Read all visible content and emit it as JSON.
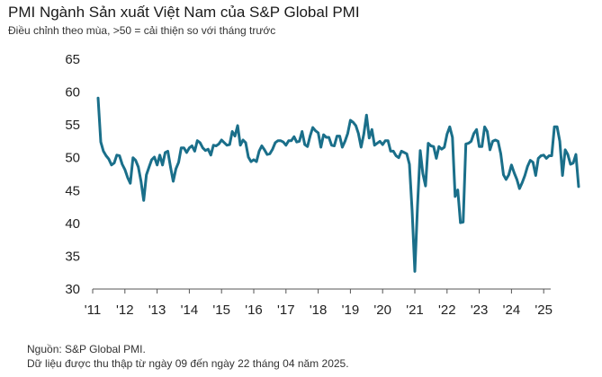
{
  "title": "PMI Ngành Sản xuất Việt Nam của S&P Global PMI",
  "subtitle": "Điều chỉnh theo mùa, >50 = cải thiện so với tháng trước",
  "footer": {
    "source": "Nguồn: S&P Global PMI.",
    "note": "Dữ liệu được thu thập từ ngày 09 đến ngày 22 tháng 04 năm 2025."
  },
  "chart_data": {
    "type": "line",
    "title": "PMI Ngành Sản xuất Việt Nam của S&P Global PMI",
    "subtitle": "Điều chỉnh theo mùa, >50 = cải thiện so với tháng trước",
    "xlabel": "",
    "ylabel": "",
    "ylim": [
      30,
      65
    ],
    "yticks": [
      30,
      35,
      40,
      45,
      50,
      55,
      60,
      65
    ],
    "xticks": [
      "'11",
      "'12",
      "'13",
      "'14",
      "'15",
      "'16",
      "'17",
      "'18",
      "'19",
      "'20",
      "'21",
      "'22",
      "'23",
      "'24",
      "'25"
    ],
    "x_start": "2011-03",
    "frequency": "monthly",
    "grid": false,
    "legend": "none",
    "line_color": "#1a6f8a",
    "series": [
      {
        "values": [
          59.1,
          52.4,
          51.0,
          50.3,
          49.8,
          48.9,
          49.2,
          50.4,
          50.3,
          49.0,
          48.2,
          47.0,
          46.1,
          50.0,
          49.6,
          48.6,
          46.4,
          43.5,
          47.4,
          48.6,
          49.7,
          50.1,
          48.9,
          50.4,
          48.9,
          50.8,
          51.0,
          48.6,
          46.4,
          48.3,
          49.3,
          51.5,
          51.5,
          50.8,
          51.5,
          51.8,
          51.0,
          52.6,
          52.3,
          51.5,
          51.1,
          51.3,
          50.4,
          51.9,
          51.8,
          52.1,
          52.7,
          52.3,
          51.9,
          52.0,
          54.0,
          53.3,
          54.9,
          51.9,
          52.7,
          52.3,
          50.1,
          49.4,
          49.7,
          49.4,
          51.0,
          51.8,
          51.2,
          50.5,
          50.6,
          51.3,
          52.3,
          52.6,
          52.6,
          52.4,
          51.9,
          52.6,
          52.6,
          53.2,
          52.4,
          52.5,
          54.0,
          52.0,
          51.7,
          53.3,
          54.6,
          54.1,
          53.8,
          51.6,
          53.5,
          53.1,
          53.1,
          51.9,
          51.8,
          53.3,
          53.3,
          51.6,
          52.5,
          53.7,
          55.7,
          55.4,
          54.9,
          53.7,
          51.6,
          53.6,
          56.5,
          53.0,
          54.3,
          51.9,
          52.2,
          52.5,
          52.0,
          52.6,
          52.6,
          51.0,
          51.0,
          50.3,
          50.0,
          51.0,
          50.8,
          50.6,
          49.0,
          41.9,
          32.7,
          42.7,
          51.1,
          47.6,
          45.7,
          52.2,
          51.8,
          51.7,
          49.9,
          51.7,
          51.3,
          51.6,
          53.6,
          54.7,
          53.1,
          44.1,
          45.1,
          40.1,
          40.2,
          52.1,
          52.2,
          52.5,
          53.7,
          54.3,
          51.7,
          51.7,
          54.7,
          54.0,
          51.2,
          52.5,
          52.7,
          52.5,
          50.6,
          47.4,
          46.7,
          47.4,
          48.9,
          47.7,
          46.7,
          45.3,
          46.2,
          47.3,
          48.7,
          49.6,
          49.3,
          47.3,
          49.9,
          50.3,
          50.4,
          49.9,
          50.3,
          50.3,
          54.7,
          54.7,
          52.5,
          47.3,
          51.2,
          50.5,
          49.0,
          49.2,
          50.5,
          45.6
        ]
      }
    ]
  }
}
